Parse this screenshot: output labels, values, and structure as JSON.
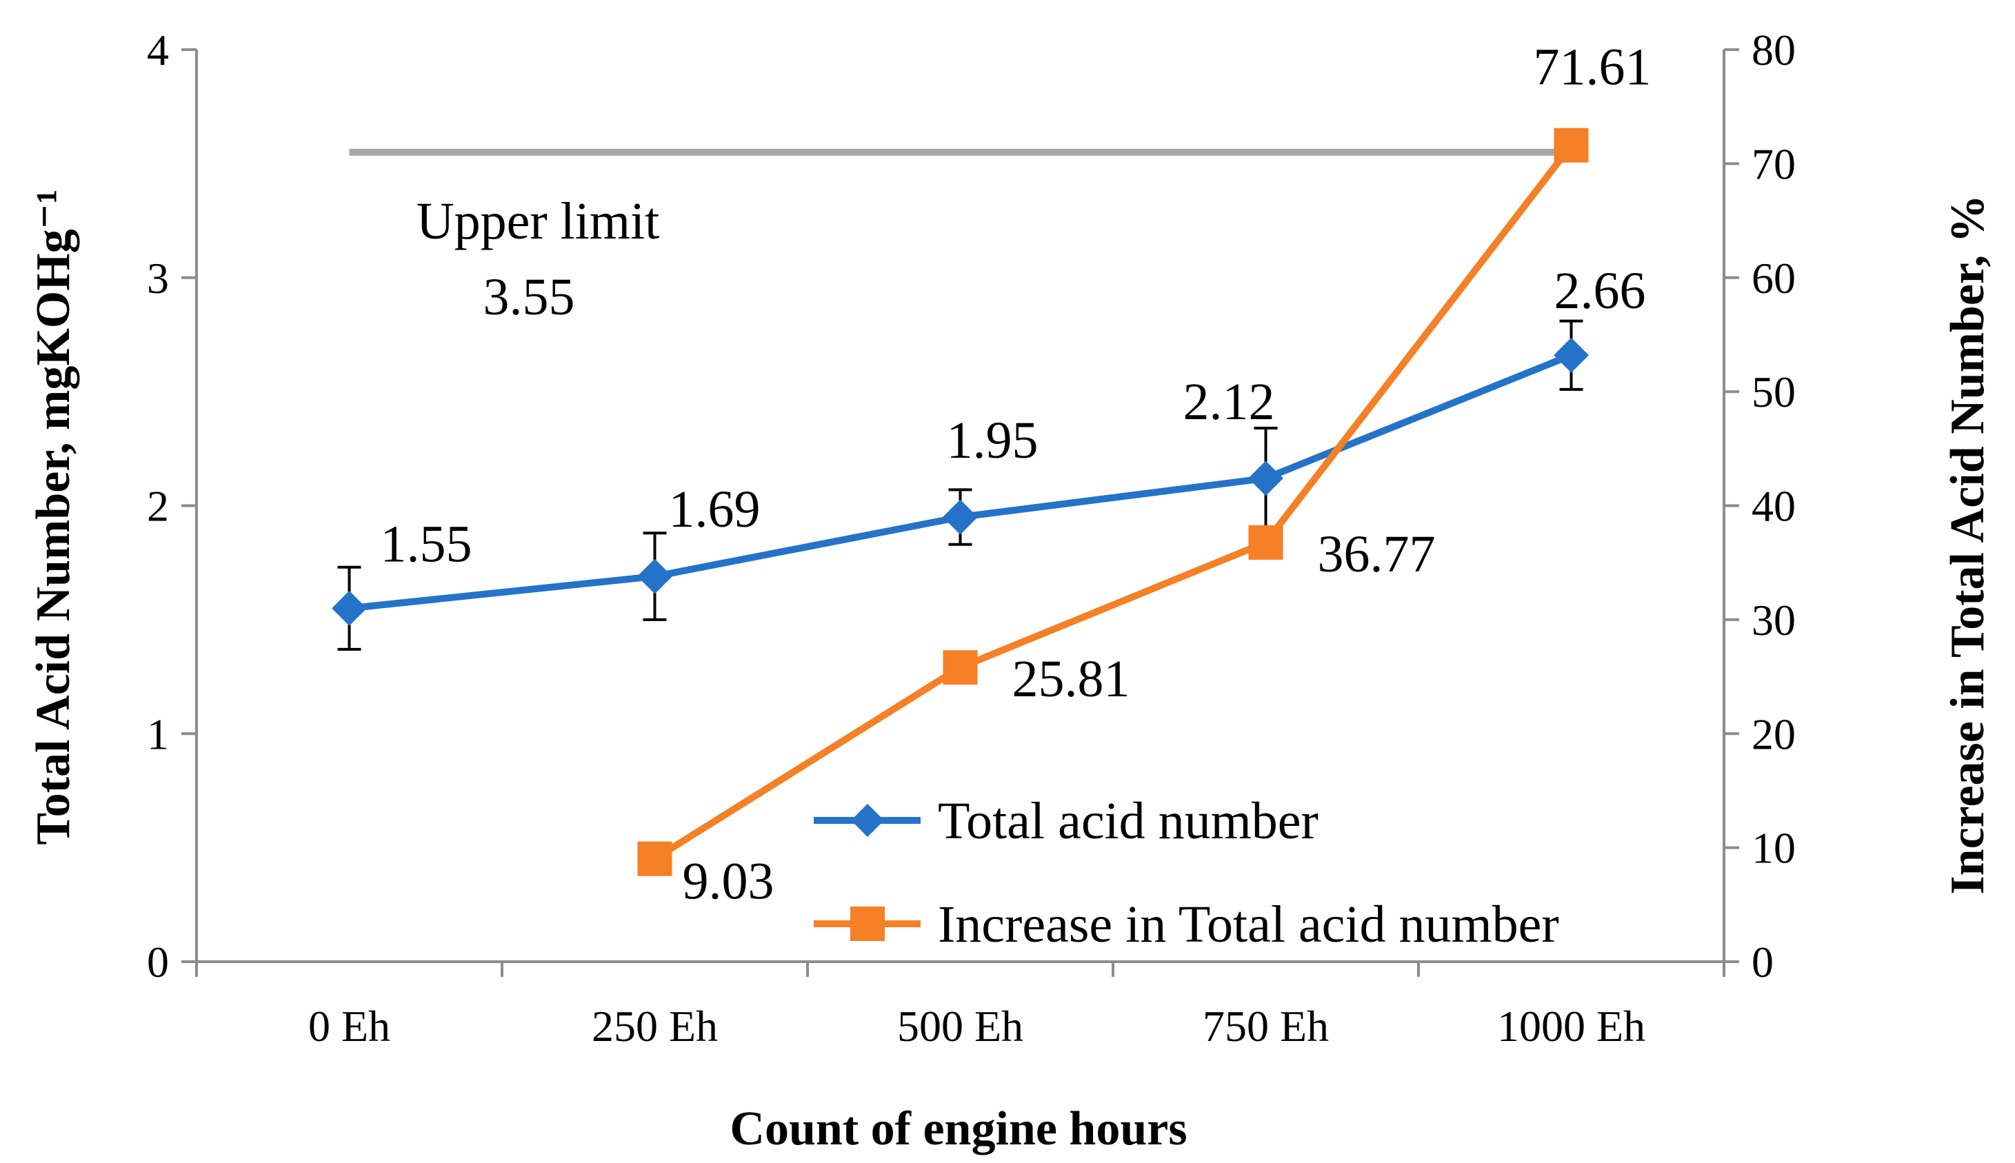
{
  "chart_data": {
    "type": "line",
    "xlabel": "Count of engine hours",
    "ylabel_left": "Total Acid Number, mgKOHg⁻¹",
    "ylabel_right": "Increase in Total Acid Number, %",
    "categories": [
      "0 Eh",
      "250 Eh",
      "500 Eh",
      "750 Eh",
      "1000 Eh"
    ],
    "ylim_left": [
      0,
      4
    ],
    "yticks_left": [
      "0",
      "1",
      "2",
      "3",
      "4"
    ],
    "ylim_right": [
      0,
      80
    ],
    "yticks_right": [
      "0",
      "10",
      "20",
      "30",
      "40",
      "50",
      "60",
      "70",
      "80"
    ],
    "grid": false,
    "legend_position": "bottom-right",
    "series": [
      {
        "name": "Total acid number",
        "axis": "left",
        "color": "#2473C9",
        "marker": "diamond",
        "values": [
          1.55,
          1.69,
          1.95,
          2.12,
          2.66
        ],
        "error": [
          0.18,
          0.19,
          0.12,
          0.22,
          0.15
        ],
        "labels": [
          "1.55",
          "1.69",
          "1.95",
          "2.12",
          "2.66"
        ]
      },
      {
        "name": "Increase in Total acid number",
        "axis": "right",
        "color": "#F58025",
        "marker": "square",
        "values": [
          null,
          9.03,
          25.81,
          36.77,
          71.61
        ],
        "labels": [
          "",
          "9.03",
          "25.81",
          "36.77",
          "71.61"
        ]
      }
    ],
    "reference_line": {
      "axis": "left",
      "value": 3.55,
      "color": "#A6A6A6",
      "label": "Upper limit",
      "value_label": "3.55"
    }
  }
}
